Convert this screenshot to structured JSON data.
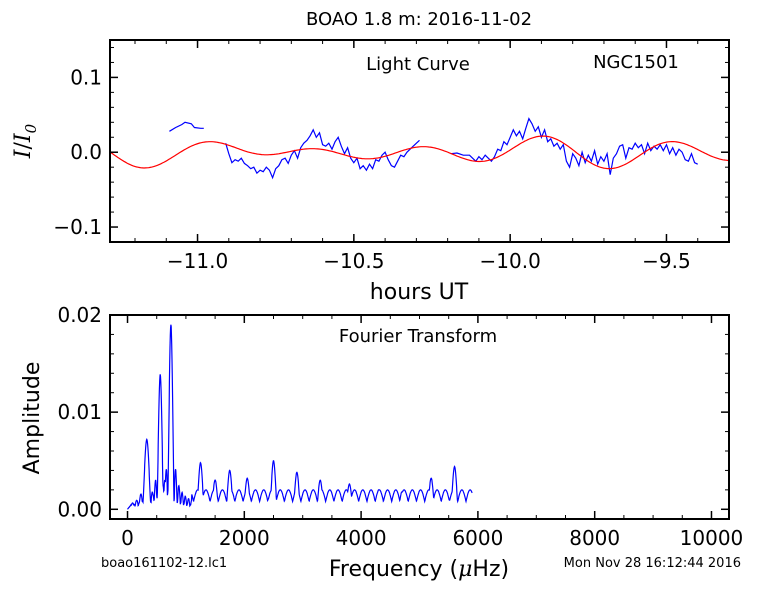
{
  "figure": {
    "title": "BOAO 1.8 m:  2016-11-02",
    "footer_left": "boao161102-12.lc1",
    "footer_right": "Mon Nov 28 16:12:44 2016"
  },
  "chart_data": [
    {
      "id": "light-curve",
      "type": "line",
      "annotation": "Light Curve",
      "object_label": "NGC1501",
      "xlabel": "hours UT",
      "ylabel_main": "I",
      "ylabel_sep": "/",
      "ylabel_denom": "I",
      "ylabel_sub": "0",
      "xlim": [
        -11.28,
        -9.3
      ],
      "ylim": [
        -0.12,
        0.15
      ],
      "xticks": [
        -11.0,
        -10.5,
        -10.0,
        -9.5
      ],
      "xtick_labels": [
        "−11.0",
        "−10.5",
        "−10.0",
        "−9.5"
      ],
      "yticks": [
        -0.1,
        0.0,
        0.1
      ],
      "ytick_labels": [
        "−0.1",
        "0.0",
        "0.1"
      ],
      "series": [
        {
          "color": "#0000ff",
          "segments": [
            [
              [
                -11.09,
                0.028
              ],
              [
                -11.07,
                0.033
              ],
              [
                -11.05,
                0.037
              ],
              [
                -11.04,
                0.04
              ],
              [
                -11.02,
                0.038
              ],
              [
                -11.01,
                0.033
              ],
              [
                -10.99,
                0.032
              ],
              [
                -10.98,
                0.032
              ]
            ],
            [
              [
                -10.91,
                0.012
              ],
              [
                -10.9,
                -0.002
              ],
              [
                -10.89,
                -0.014
              ],
              [
                -10.88,
                -0.01
              ],
              [
                -10.87,
                -0.012
              ],
              [
                -10.86,
                -0.008
              ],
              [
                -10.85,
                -0.015
              ],
              [
                -10.84,
                -0.018
              ],
              [
                -10.83,
                -0.022
              ],
              [
                -10.82,
                -0.02
              ],
              [
                -10.81,
                -0.028
              ],
              [
                -10.8,
                -0.024
              ],
              [
                -10.79,
                -0.026
              ],
              [
                -10.78,
                -0.02
              ],
              [
                -10.77,
                -0.024
              ],
              [
                -10.76,
                -0.034
              ],
              [
                -10.75,
                -0.022
              ],
              [
                -10.74,
                -0.018
              ],
              [
                -10.73,
                -0.01
              ],
              [
                -10.72,
                -0.008
              ],
              [
                -10.71,
                -0.015
              ],
              [
                -10.7,
                -0.004
              ],
              [
                -10.69,
                0.002
              ],
              [
                -10.68,
                -0.008
              ],
              [
                -10.67,
                0.006
              ],
              [
                -10.66,
                0.012
              ],
              [
                -10.65,
                0.016
              ],
              [
                -10.64,
                0.022
              ],
              [
                -10.63,
                0.03
              ],
              [
                -10.62,
                0.02
              ],
              [
                -10.61,
                0.026
              ],
              [
                -10.6,
                0.01
              ],
              [
                -10.59,
                0.008
              ],
              [
                -10.58,
                0.012
              ],
              [
                -10.57,
                0.004
              ],
              [
                -10.56,
                0.014
              ],
              [
                -10.55,
                0.02
              ],
              [
                -10.54,
                0.008
              ],
              [
                -10.53,
                -0.002
              ],
              [
                -10.52,
                0.006
              ],
              [
                -10.51,
                -0.008
              ],
              [
                -10.5,
                -0.014
              ],
              [
                -10.49,
                -0.008
              ],
              [
                -10.48,
                -0.022
              ],
              [
                -10.47,
                -0.018
              ],
              [
                -10.46,
                -0.024
              ],
              [
                -10.45,
                -0.016
              ],
              [
                -10.44,
                -0.022
              ],
              [
                -10.43,
                -0.01
              ],
              [
                -10.42,
                -0.012
              ],
              [
                -10.41,
                -0.004
              ],
              [
                -10.4,
                0.0
              ],
              [
                -10.39,
                -0.01
              ],
              [
                -10.38,
                -0.018
              ],
              [
                -10.37,
                -0.02
              ],
              [
                -10.36,
                -0.012
              ],
              [
                -10.35,
                -0.004
              ],
              [
                -10.34,
                -0.006
              ],
              [
                -10.33,
                0.0
              ],
              [
                -10.32,
                0.004
              ],
              [
                -10.31,
                0.008
              ],
              [
                -10.3,
                0.012
              ],
              [
                -10.29,
                0.016
              ]
            ],
            [
              [
                -10.19,
                -0.002
              ],
              [
                -10.17,
                -0.001
              ],
              [
                -10.15,
                -0.004
              ],
              [
                -10.13,
                -0.004
              ],
              [
                -10.12,
                -0.008
              ],
              [
                -10.11,
                -0.012
              ],
              [
                -10.1,
                -0.006
              ],
              [
                -10.09,
                -0.01
              ],
              [
                -10.08,
                -0.004
              ],
              [
                -10.07,
                -0.008
              ],
              [
                -10.06,
                -0.012
              ],
              [
                -10.05,
                -0.006
              ],
              [
                -10.04,
                0.004
              ],
              [
                -10.03,
                0.002
              ],
              [
                -10.02,
                0.014
              ],
              [
                -10.01,
                0.01
              ],
              [
                -10.0,
                0.02
              ],
              [
                -9.99,
                0.03
              ],
              [
                -9.98,
                0.022
              ],
              [
                -9.97,
                0.028
              ],
              [
                -9.96,
                0.018
              ],
              [
                -9.95,
                0.032
              ],
              [
                -9.94,
                0.045
              ],
              [
                -9.93,
                0.038
              ],
              [
                -9.92,
                0.028
              ],
              [
                -9.91,
                0.034
              ],
              [
                -9.9,
                0.02
              ],
              [
                -9.89,
                0.03
              ],
              [
                -9.88,
                0.014
              ],
              [
                -9.87,
                0.018
              ],
              [
                -9.86,
                0.008
              ],
              [
                -9.85,
                0.012
              ],
              [
                -9.84,
                0.004
              ],
              [
                -9.83,
                0.01
              ],
              [
                -9.82,
                -0.012
              ],
              [
                -9.81,
                -0.02
              ],
              [
                -9.8,
                -0.002
              ],
              [
                -9.79,
                -0.008
              ],
              [
                -9.78,
                -0.018
              ],
              [
                -9.77,
                0.0
              ],
              [
                -9.76,
                -0.014
              ],
              [
                -9.75,
                -0.004
              ],
              [
                -9.74,
                -0.012
              ],
              [
                -9.73,
                0.002
              ],
              [
                -9.72,
                -0.016
              ],
              [
                -9.71,
                -0.006
              ],
              [
                -9.7,
                -0.012
              ],
              [
                -9.69,
                -0.002
              ],
              [
                -9.68,
                -0.03
              ],
              [
                -9.67,
                -0.008
              ],
              [
                -9.66,
                -0.002
              ],
              [
                -9.65,
                0.008
              ],
              [
                -9.64,
                0.01
              ],
              [
                -9.63,
                -0.008
              ],
              [
                -9.62,
                0.006
              ],
              [
                -9.61,
                0.004
              ],
              [
                -9.6,
                0.012
              ],
              [
                -9.59,
                0.006
              ],
              [
                -9.58,
                0.01
              ],
              [
                -9.57,
                -0.002
              ],
              [
                -9.56,
                0.012
              ],
              [
                -9.55,
                0.002
              ],
              [
                -9.54,
                0.008
              ],
              [
                -9.53,
                0.004
              ],
              [
                -9.52,
                0.01
              ],
              [
                -9.51,
                0.002
              ],
              [
                -9.5,
                0.01
              ],
              [
                -9.49,
                -0.002
              ],
              [
                -9.48,
                0.006
              ],
              [
                -9.47,
                -0.004
              ],
              [
                -9.46,
                0.004
              ],
              [
                -9.45,
                0.0
              ],
              [
                -9.44,
                -0.01
              ],
              [
                -9.43,
                -0.012
              ],
              [
                -9.42,
                -0.002
              ],
              [
                -9.41,
                -0.014
              ],
              [
                -9.4,
                -0.016
              ]
            ]
          ]
        },
        {
          "color": "#ff0000",
          "model": {
            "components": [
              {
                "amp": 0.019,
                "freq_uHz": 743,
                "phase_hours": -11.0
              },
              {
                "amp": 0.013,
                "freq_uHz": 580,
                "phase_hours": -10.4
              },
              {
                "amp": 0.007,
                "freq_uHz": 340,
                "phase_hours": -10.8
              }
            ],
            "x_start": -11.28,
            "x_end": -9.3
          }
        }
      ]
    },
    {
      "id": "fourier-transform",
      "type": "line",
      "annotation": "Fourier Transform",
      "xlabel_prefix": "Frequency (",
      "xlabel_mu": "μ",
      "xlabel_suffix": "Hz)",
      "ylabel": "Amplitude",
      "xlim": [
        -300,
        10300
      ],
      "ylim": [
        -0.001,
        0.02
      ],
      "xticks": [
        0,
        2000,
        4000,
        6000,
        8000,
        10000
      ],
      "xtick_labels": [
        "0",
        "2000",
        "4000",
        "6000",
        "8000",
        "10000"
      ],
      "yticks": [
        0.0,
        0.01,
        0.02
      ],
      "ytick_labels": [
        "0.00",
        "0.01",
        "0.02"
      ],
      "series": [
        {
          "color": "#0000ff",
          "peaks": [
            {
              "f": 330,
              "a": 0.0072,
              "w": 70
            },
            {
              "f": 560,
              "a": 0.0139,
              "w": 55
            },
            {
              "f": 743,
              "a": 0.019,
              "w": 55
            },
            {
              "f": 1250,
              "a": 0.0048,
              "w": 60
            },
            {
              "f": 1500,
              "a": 0.003,
              "w": 60
            },
            {
              "f": 1750,
              "a": 0.004,
              "w": 60
            },
            {
              "f": 2050,
              "a": 0.0032,
              "w": 60
            },
            {
              "f": 2500,
              "a": 0.005,
              "w": 60
            },
            {
              "f": 2900,
              "a": 0.0038,
              "w": 60
            },
            {
              "f": 3300,
              "a": 0.003,
              "w": 60
            },
            {
              "f": 3800,
              "a": 0.0026,
              "w": 60
            },
            {
              "f": 4300,
              "a": 0.002,
              "w": 60
            },
            {
              "f": 4700,
              "a": 0.0018,
              "w": 60
            },
            {
              "f": 5200,
              "a": 0.0032,
              "w": 60
            },
            {
              "f": 5600,
              "a": 0.0044,
              "w": 60
            }
          ],
          "f_start": 0,
          "f_end": 5900
        }
      ]
    }
  ]
}
